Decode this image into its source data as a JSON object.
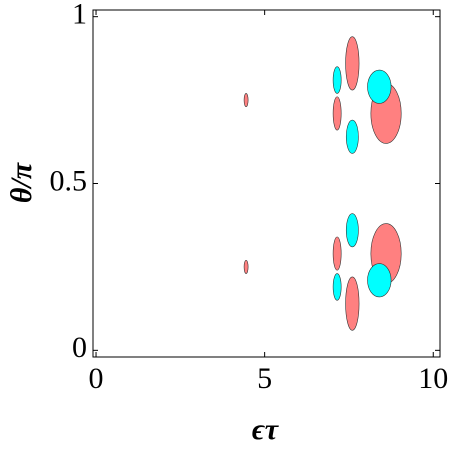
{
  "chart_data": {
    "type": "contour",
    "x_label": "ϵτ",
    "y_label": "θ/π",
    "xlim": [
      -0.09,
      10.2
    ],
    "ylim": [
      -0.02,
      1.02
    ],
    "xticks": [
      0,
      5,
      10
    ],
    "yticks": [
      0,
      0.5,
      1
    ],
    "series": [
      {
        "color": "#ff8080",
        "x": [
          4.45,
          4.45,
          7.6,
          7.15,
          8.6,
          7.6,
          7.15,
          8.6
        ],
        "values": [
          0.75,
          0.25,
          0.86,
          0.71,
          0.71,
          0.14,
          0.29,
          0.29
        ],
        "dx": [
          0.06,
          0.06,
          0.2,
          0.12,
          0.45,
          0.2,
          0.12,
          0.45
        ],
        "dy": [
          0.02,
          0.02,
          0.08,
          0.05,
          0.09,
          0.08,
          0.05,
          0.09
        ]
      },
      {
        "color": "#00ffff",
        "x": [
          7.15,
          7.6,
          8.4,
          7.6,
          7.15,
          8.4
        ],
        "values": [
          0.81,
          0.64,
          0.79,
          0.36,
          0.19,
          0.21
        ],
        "dx": [
          0.12,
          0.18,
          0.35,
          0.18,
          0.12,
          0.35
        ],
        "dy": [
          0.04,
          0.05,
          0.05,
          0.05,
          0.04,
          0.05
        ]
      }
    ]
  }
}
